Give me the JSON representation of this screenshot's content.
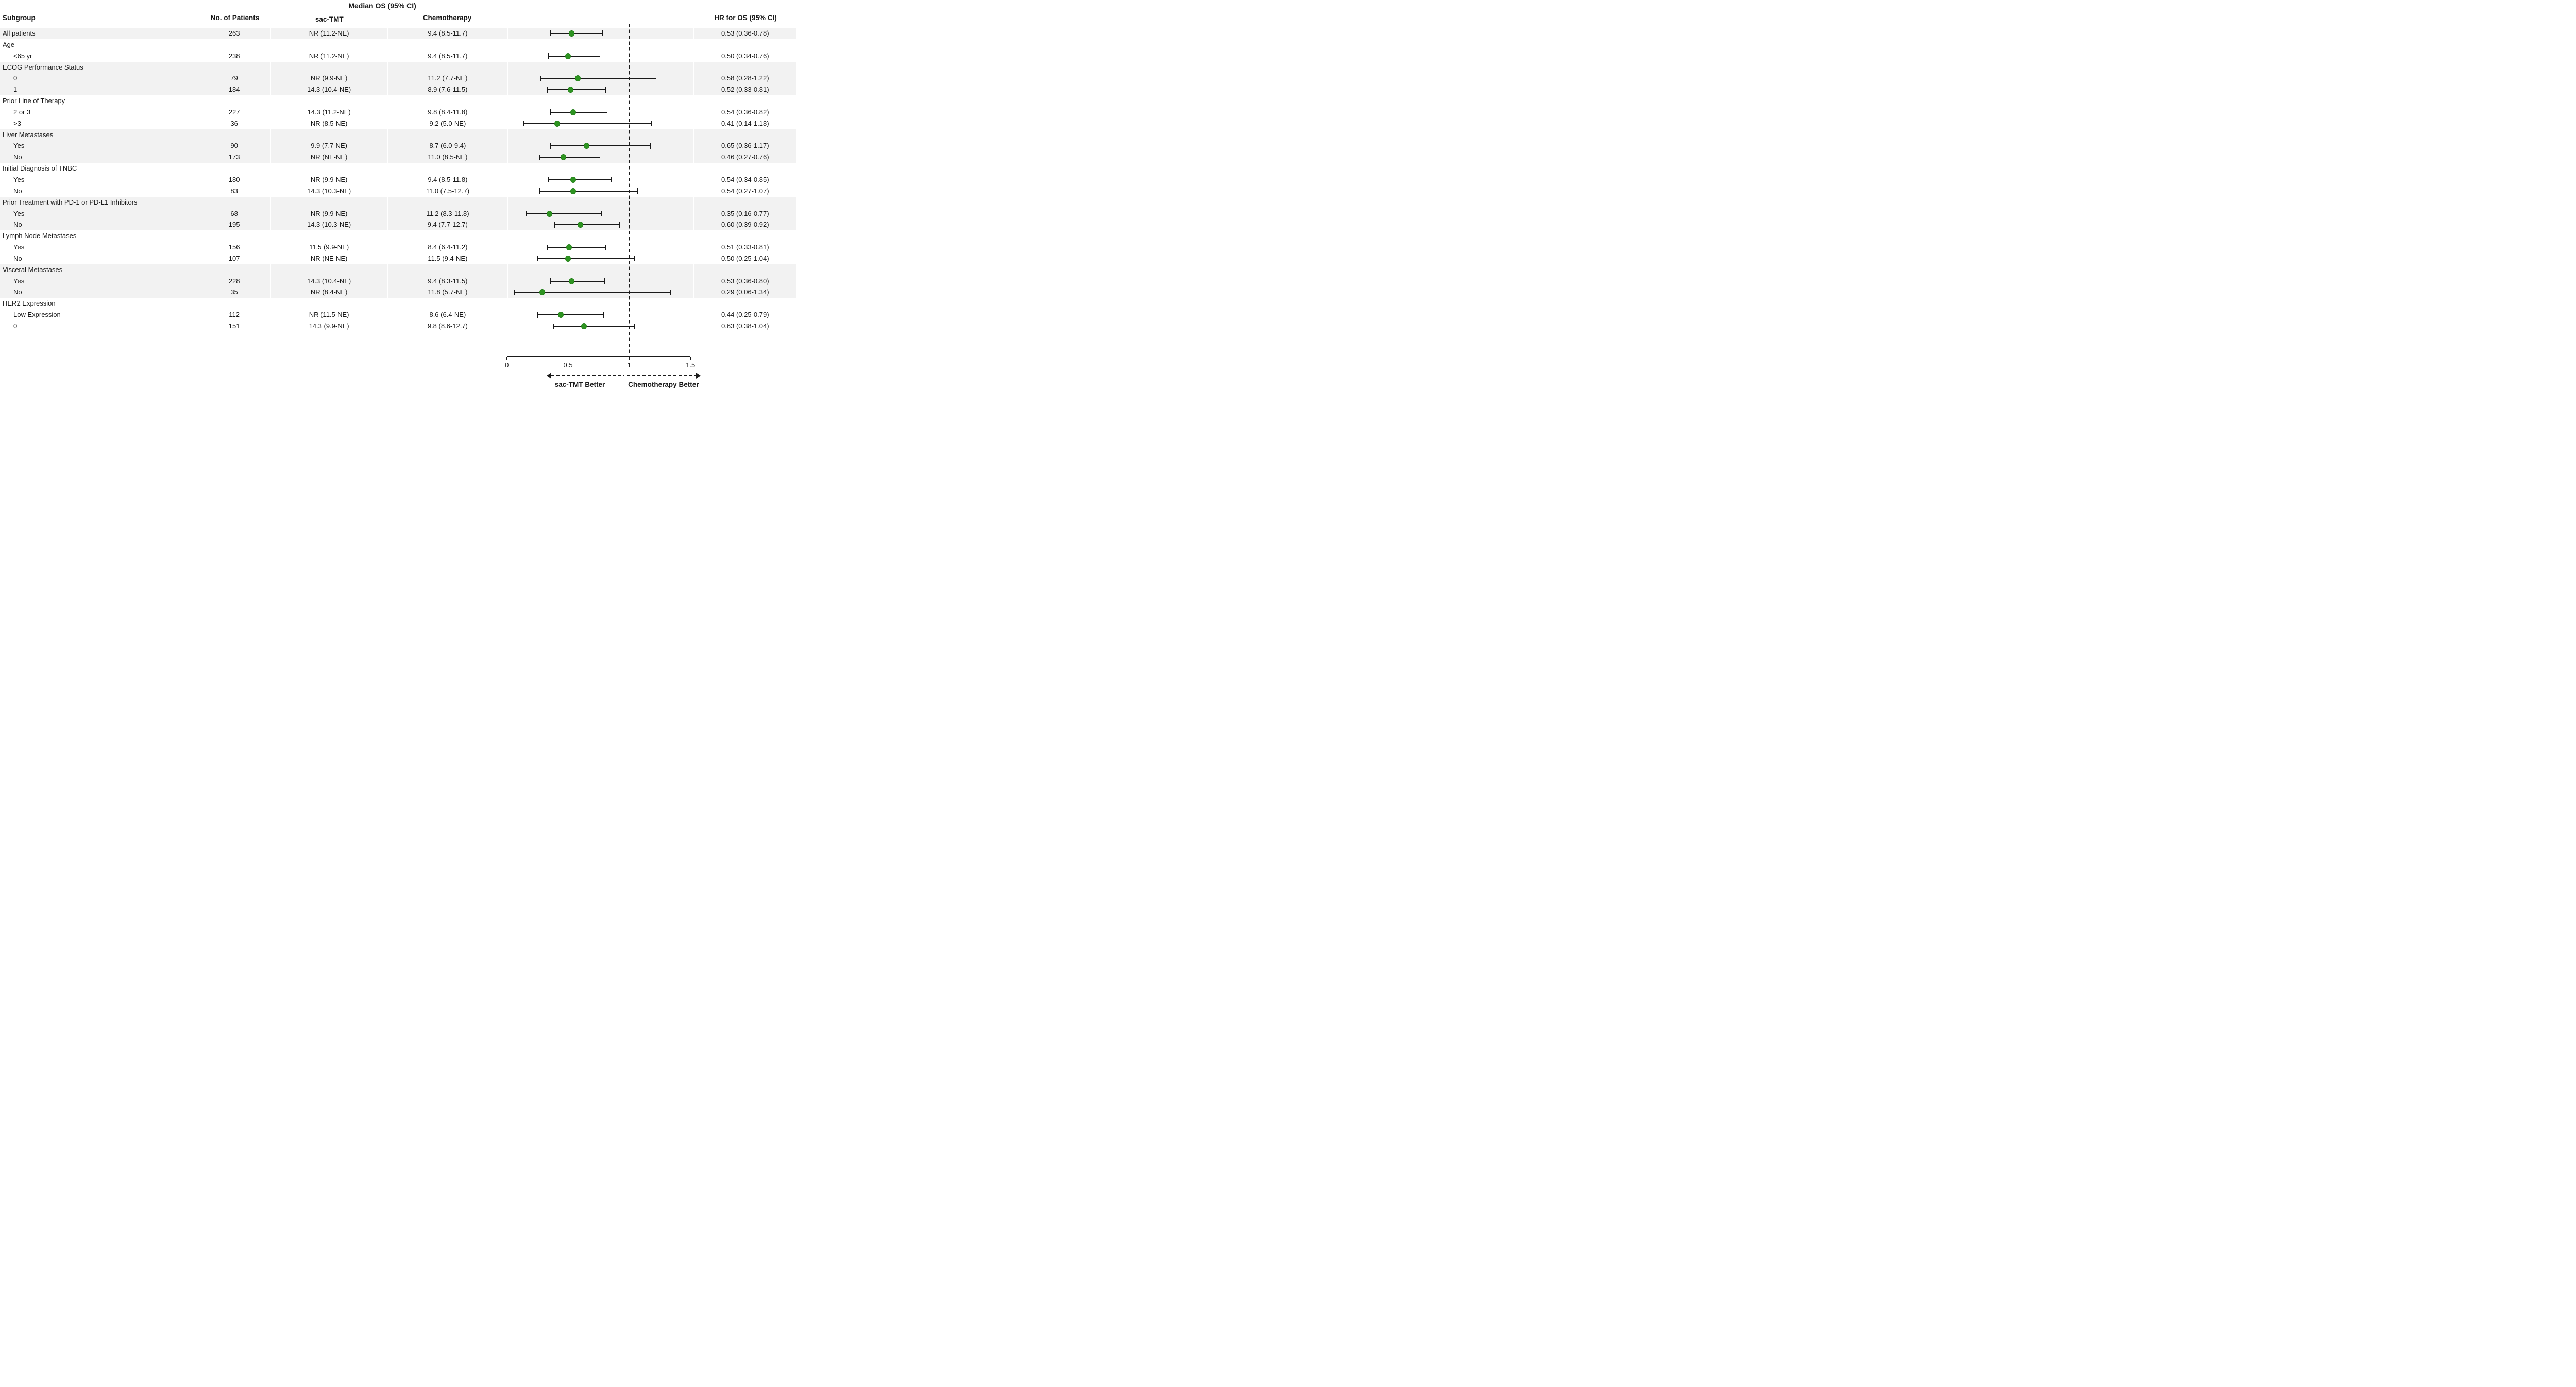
{
  "header": {
    "title": "Median OS (95% CI)",
    "columns": {
      "subgroup": "Subgroup",
      "patients": "No. of Patients",
      "sac_tmt": "sac-TMT",
      "chemotherapy": "Chemotherapy",
      "hr": "HR for OS (95% CI)"
    }
  },
  "footer": {
    "left_label": "sac-TMT Better",
    "right_label": "Chemotherapy Better"
  },
  "colors": {
    "marker_fill": "#2e9421",
    "marker_border": "#1f7d15",
    "band_gray": "#f2f2f2",
    "line": "#1a1a1a"
  },
  "chart_data": {
    "type": "forest",
    "title": "Median OS (95% CI)",
    "x_axis": {
      "range": [
        0,
        1.5
      ],
      "ticks": [
        0,
        0.5,
        1,
        1.5
      ],
      "tick_labels": [
        "0",
        "0.5",
        "1",
        "1.5"
      ],
      "reference_line": 1
    },
    "legend_position": "none",
    "grid": false,
    "better_labels": {
      "left": "sac-TMT Better",
      "right": "Chemotherapy Better"
    },
    "rows": [
      {
        "label": "All patients",
        "header": false,
        "indent": false,
        "shaded": true,
        "n": "263",
        "sac_tmt": "NR (11.2-NE)",
        "chemo": "9.4 (8.5-11.7)",
        "hr_text": "0.53 (0.36-0.78)",
        "hr": 0.53,
        "lo": 0.36,
        "hi": 0.78
      },
      {
        "label": "Age",
        "header": true,
        "indent": false,
        "shaded": false
      },
      {
        "label": "<65 yr",
        "header": false,
        "indent": true,
        "shaded": false,
        "n": "238",
        "sac_tmt": "NR (11.2-NE)",
        "chemo": "9.4 (8.5-11.7)",
        "hr_text": "0.50 (0.34-0.76)",
        "hr": 0.5,
        "lo": 0.34,
        "hi": 0.76
      },
      {
        "label": "ECOG Performance Status",
        "header": true,
        "indent": false,
        "shaded": true
      },
      {
        "label": "0",
        "header": false,
        "indent": true,
        "shaded": true,
        "n": "79",
        "sac_tmt": "NR (9.9-NE)",
        "chemo": "11.2 (7.7-NE)",
        "hr_text": "0.58 (0.28-1.22)",
        "hr": 0.58,
        "lo": 0.28,
        "hi": 1.22
      },
      {
        "label": "1",
        "header": false,
        "indent": true,
        "shaded": true,
        "n": "184",
        "sac_tmt": "14.3 (10.4-NE)",
        "chemo": "8.9 (7.6-11.5)",
        "hr_text": "0.52 (0.33-0.81)",
        "hr": 0.52,
        "lo": 0.33,
        "hi": 0.81
      },
      {
        "label": "Prior Line of Therapy",
        "header": true,
        "indent": false,
        "shaded": false
      },
      {
        "label": "2 or 3",
        "header": false,
        "indent": true,
        "shaded": false,
        "n": "227",
        "sac_tmt": "14.3 (11.2-NE)",
        "chemo": "9.8 (8.4-11.8)",
        "hr_text": "0.54 (0.36-0.82)",
        "hr": 0.54,
        "lo": 0.36,
        "hi": 0.82
      },
      {
        "label": ">3",
        "header": false,
        "indent": true,
        "shaded": false,
        "n": "36",
        "sac_tmt": "NR (8.5-NE)",
        "chemo": "9.2 (5.0-NE)",
        "hr_text": "0.41 (0.14-1.18)",
        "hr": 0.41,
        "lo": 0.14,
        "hi": 1.18
      },
      {
        "label": "Liver Metastases",
        "header": true,
        "indent": false,
        "shaded": true
      },
      {
        "label": "Yes",
        "header": false,
        "indent": true,
        "shaded": true,
        "n": "90",
        "sac_tmt": "9.9 (7.7-NE)",
        "chemo": "8.7 (6.0-9.4)",
        "hr_text": "0.65 (0.36-1.17)",
        "hr": 0.65,
        "lo": 0.36,
        "hi": 1.17
      },
      {
        "label": "No",
        "header": false,
        "indent": true,
        "shaded": true,
        "n": "173",
        "sac_tmt": "NR (NE-NE)",
        "chemo": "11.0 (8.5-NE)",
        "hr_text": "0.46 (0.27-0.76)",
        "hr": 0.46,
        "lo": 0.27,
        "hi": 0.76
      },
      {
        "label": "Initial Diagnosis of TNBC",
        "header": true,
        "indent": false,
        "shaded": false
      },
      {
        "label": "Yes",
        "header": false,
        "indent": true,
        "shaded": false,
        "n": "180",
        "sac_tmt": "NR (9.9-NE)",
        "chemo": "9.4 (8.5-11.8)",
        "hr_text": "0.54 (0.34-0.85)",
        "hr": 0.54,
        "lo": 0.34,
        "hi": 0.85
      },
      {
        "label": "No",
        "header": false,
        "indent": true,
        "shaded": false,
        "n": "83",
        "sac_tmt": "14.3 (10.3-NE)",
        "chemo": "11.0 (7.5-12.7)",
        "hr_text": "0.54 (0.27-1.07)",
        "hr": 0.54,
        "lo": 0.27,
        "hi": 1.07
      },
      {
        "label": "Prior Treatment with PD-1 or PD-L1 Inhibitors",
        "header": true,
        "indent": false,
        "shaded": true
      },
      {
        "label": "Yes",
        "header": false,
        "indent": true,
        "shaded": true,
        "n": "68",
        "sac_tmt": "NR (9.9-NE)",
        "chemo": "11.2 (8.3-11.8)",
        "hr_text": "0.35 (0.16-0.77)",
        "hr": 0.35,
        "lo": 0.16,
        "hi": 0.77
      },
      {
        "label": "No",
        "header": false,
        "indent": true,
        "shaded": true,
        "n": "195",
        "sac_tmt": "14.3 (10.3-NE)",
        "chemo": "9.4 (7.7-12.7)",
        "hr_text": "0.60 (0.39-0.92)",
        "hr": 0.6,
        "lo": 0.39,
        "hi": 0.92
      },
      {
        "label": "Lymph Node Metastases",
        "header": true,
        "indent": false,
        "shaded": false
      },
      {
        "label": "Yes",
        "header": false,
        "indent": true,
        "shaded": false,
        "n": "156",
        "sac_tmt": "11.5 (9.9-NE)",
        "chemo": "8.4 (6.4-11.2)",
        "hr_text": "0.51 (0.33-0.81)",
        "hr": 0.51,
        "lo": 0.33,
        "hi": 0.81
      },
      {
        "label": "No",
        "header": false,
        "indent": true,
        "shaded": false,
        "n": "107",
        "sac_tmt": "NR (NE-NE)",
        "chemo": "11.5 (9.4-NE)",
        "hr_text": "0.50 (0.25-1.04)",
        "hr": 0.5,
        "lo": 0.25,
        "hi": 1.04
      },
      {
        "label": "Visceral Metastases",
        "header": true,
        "indent": false,
        "shaded": true
      },
      {
        "label": "Yes",
        "header": false,
        "indent": true,
        "shaded": true,
        "n": "228",
        "sac_tmt": "14.3 (10.4-NE)",
        "chemo": "9.4 (8.3-11.5)",
        "hr_text": "0.53 (0.36-0.80)",
        "hr": 0.53,
        "lo": 0.36,
        "hi": 0.8
      },
      {
        "label": "No",
        "header": false,
        "indent": true,
        "shaded": true,
        "n": "35",
        "sac_tmt": "NR (8.4-NE)",
        "chemo": "11.8 (5.7-NE)",
        "hr_text": "0.29 (0.06-1.34)",
        "hr": 0.29,
        "lo": 0.06,
        "hi": 1.34
      },
      {
        "label": "HER2 Expression",
        "header": true,
        "indent": false,
        "shaded": false
      },
      {
        "label": "Low Expression",
        "header": false,
        "indent": true,
        "shaded": false,
        "n": "112",
        "sac_tmt": "NR (11.5-NE)",
        "chemo": "8.6 (6.4-NE)",
        "hr_text": "0.44 (0.25-0.79)",
        "hr": 0.44,
        "lo": 0.25,
        "hi": 0.79
      },
      {
        "label": "0",
        "header": false,
        "indent": true,
        "shaded": false,
        "n": "151",
        "sac_tmt": "14.3 (9.9-NE)",
        "chemo": "9.8 (8.6-12.7)",
        "hr_text": "0.63 (0.38-1.04)",
        "hr": 0.63,
        "lo": 0.38,
        "hi": 1.04
      }
    ]
  }
}
